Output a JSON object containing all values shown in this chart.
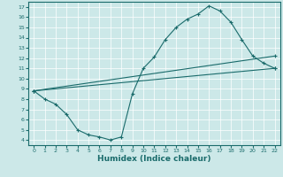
{
  "xlabel": "Humidex (Indice chaleur)",
  "bg_color": "#cce8e8",
  "line_color": "#1a6b6b",
  "grid_color": "#ffffff",
  "xlim": [
    -0.5,
    22.5
  ],
  "ylim": [
    3.5,
    17.5
  ],
  "xticks": [
    0,
    1,
    2,
    3,
    4,
    5,
    6,
    7,
    8,
    9,
    10,
    11,
    12,
    13,
    14,
    15,
    16,
    17,
    18,
    19,
    20,
    21,
    22
  ],
  "yticks": [
    4,
    5,
    6,
    7,
    8,
    9,
    10,
    11,
    12,
    13,
    14,
    15,
    16,
    17
  ],
  "line1_x": [
    0,
    1,
    2,
    3,
    4,
    5,
    6,
    7,
    8,
    9,
    10,
    11,
    12,
    13,
    14,
    15,
    16,
    17,
    18,
    19,
    20,
    21,
    22
  ],
  "line1_y": [
    8.8,
    8.0,
    7.5,
    6.5,
    5.0,
    4.5,
    4.3,
    4.0,
    4.3,
    8.5,
    11.0,
    12.1,
    13.8,
    15.0,
    15.8,
    16.3,
    17.1,
    16.6,
    15.5,
    13.8,
    12.2,
    11.5,
    11.0
  ],
  "line2_x": [
    0,
    22
  ],
  "line2_y": [
    8.8,
    11.0
  ],
  "line3_x": [
    0,
    22
  ],
  "line3_y": [
    8.8,
    12.2
  ]
}
